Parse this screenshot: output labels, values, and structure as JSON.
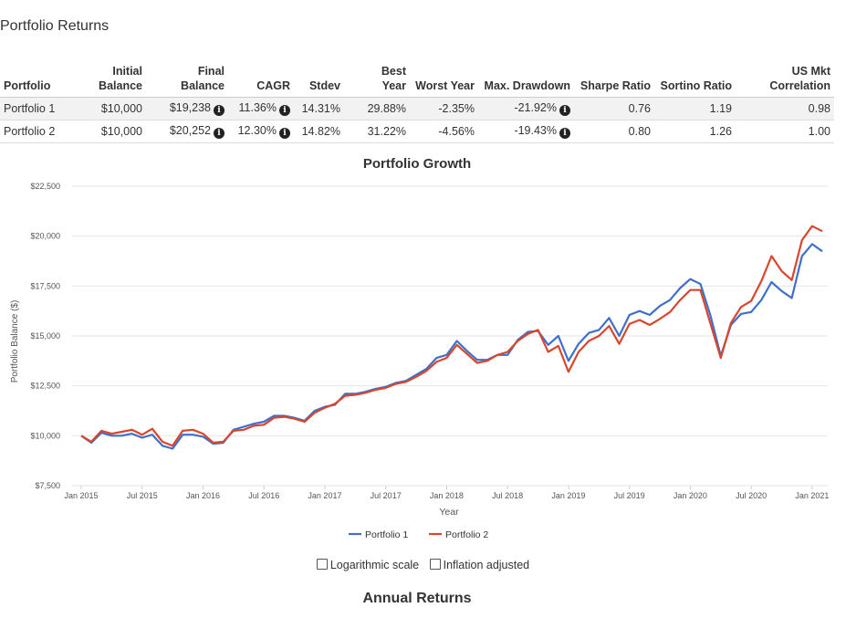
{
  "page": {
    "section_title": "Portfolio Returns",
    "annual_title": "Annual Returns"
  },
  "returns_table": {
    "headers": [
      {
        "line1": "",
        "line2": "Portfolio"
      },
      {
        "line1": "Initial",
        "line2": "Balance"
      },
      {
        "line1": "Final",
        "line2": "Balance"
      },
      {
        "line1": "",
        "line2": "CAGR"
      },
      {
        "line1": "",
        "line2": "Stdev"
      },
      {
        "line1": "Best",
        "line2": "Year"
      },
      {
        "line1": "",
        "line2": "Worst Year"
      },
      {
        "line1": "",
        "line2": "Max. Drawdown"
      },
      {
        "line1": "",
        "line2": "Sharpe Ratio"
      },
      {
        "line1": "",
        "line2": "Sortino Ratio"
      },
      {
        "line1": "",
        "line2": "US Mkt Correlation"
      }
    ],
    "rows": [
      {
        "portfolio": "Portfolio 1",
        "initial": "$10,000",
        "final": "$19,238",
        "cagr": "11.36%",
        "stdev": "14.31%",
        "best": "29.88%",
        "worst": "-2.35%",
        "drawdown": "-21.92%",
        "sharpe": "0.76",
        "sortino": "1.19",
        "corr": "0.98"
      },
      {
        "portfolio": "Portfolio 2",
        "initial": "$10,000",
        "final": "$20,252",
        "cagr": "12.30%",
        "stdev": "14.82%",
        "best": "31.22%",
        "worst": "-4.56%",
        "drawdown": "-19.43%",
        "sharpe": "0.80",
        "sortino": "1.26",
        "corr": "1.00"
      }
    ]
  },
  "controls": {
    "log_scale_label": "Logarithmic scale",
    "inflation_label": "Inflation adjusted"
  },
  "chart_data": {
    "type": "line",
    "title": "Portfolio Growth",
    "xlabel": "Year",
    "ylabel": "Portfolio Balance ($)",
    "ylim": [
      7500,
      22500
    ],
    "yticks": [
      7500,
      10000,
      12500,
      15000,
      17500,
      20000,
      22500
    ],
    "ytick_labels": [
      "$7,500",
      "$10,000",
      "$12,500",
      "$15,000",
      "$17,500",
      "$20,000",
      "$22,500"
    ],
    "xtick_labels": [
      "Jan 2015",
      "Jul 2015",
      "Jan 2016",
      "Jul 2016",
      "Jan 2017",
      "Jul 2017",
      "Jan 2018",
      "Jul 2018",
      "Jan 2019",
      "Jul 2019",
      "Jan 2020",
      "Jul 2020",
      "Jan 2021"
    ],
    "xtick_month_index": [
      0,
      6,
      12,
      18,
      24,
      30,
      36,
      42,
      48,
      54,
      60,
      66,
      72
    ],
    "x_start": "Jan 2015",
    "x_step": "1 month",
    "grid": true,
    "legend_position": "bottom",
    "series": [
      {
        "name": "Portfolio 1",
        "color": "#3f6fca",
        "values": [
          10000,
          9650,
          10150,
          10000,
          10000,
          10100,
          9900,
          10050,
          9500,
          9350,
          10050,
          10050,
          9950,
          9600,
          9650,
          10300,
          10450,
          10600,
          10700,
          11000,
          11000,
          10900,
          10750,
          11250,
          11450,
          11550,
          12100,
          12100,
          12200,
          12350,
          12450,
          12650,
          12750,
          13050,
          13350,
          13900,
          14050,
          14750,
          14250,
          13800,
          13800,
          14050,
          14050,
          14800,
          15200,
          15250,
          14550,
          15000,
          13750,
          14600,
          15150,
          15300,
          15900,
          15000,
          16050,
          16250,
          16050,
          16500,
          16800,
          17400,
          17850,
          17600,
          16000,
          14000,
          15550,
          16100,
          16200,
          16800,
          17700,
          17250,
          16900,
          19000,
          19600,
          19238
        ]
      },
      {
        "name": "Portfolio 2",
        "color": "#d9462b",
        "values": [
          10000,
          9700,
          10250,
          10100,
          10200,
          10300,
          10050,
          10350,
          9700,
          9500,
          10250,
          10300,
          10100,
          9650,
          9700,
          10250,
          10300,
          10500,
          10550,
          10900,
          10950,
          10850,
          10700,
          11150,
          11400,
          11600,
          12000,
          12050,
          12150,
          12300,
          12400,
          12600,
          12700,
          12950,
          13250,
          13700,
          13900,
          14550,
          14100,
          13650,
          13750,
          14050,
          14200,
          14750,
          15100,
          15300,
          14200,
          14500,
          13200,
          14200,
          14750,
          15000,
          15500,
          14600,
          15600,
          15800,
          15550,
          15850,
          16200,
          16800,
          17300,
          17300,
          15600,
          13900,
          15650,
          16450,
          16750,
          17750,
          19000,
          18250,
          17800,
          19800,
          20500,
          20252
        ]
      }
    ]
  }
}
